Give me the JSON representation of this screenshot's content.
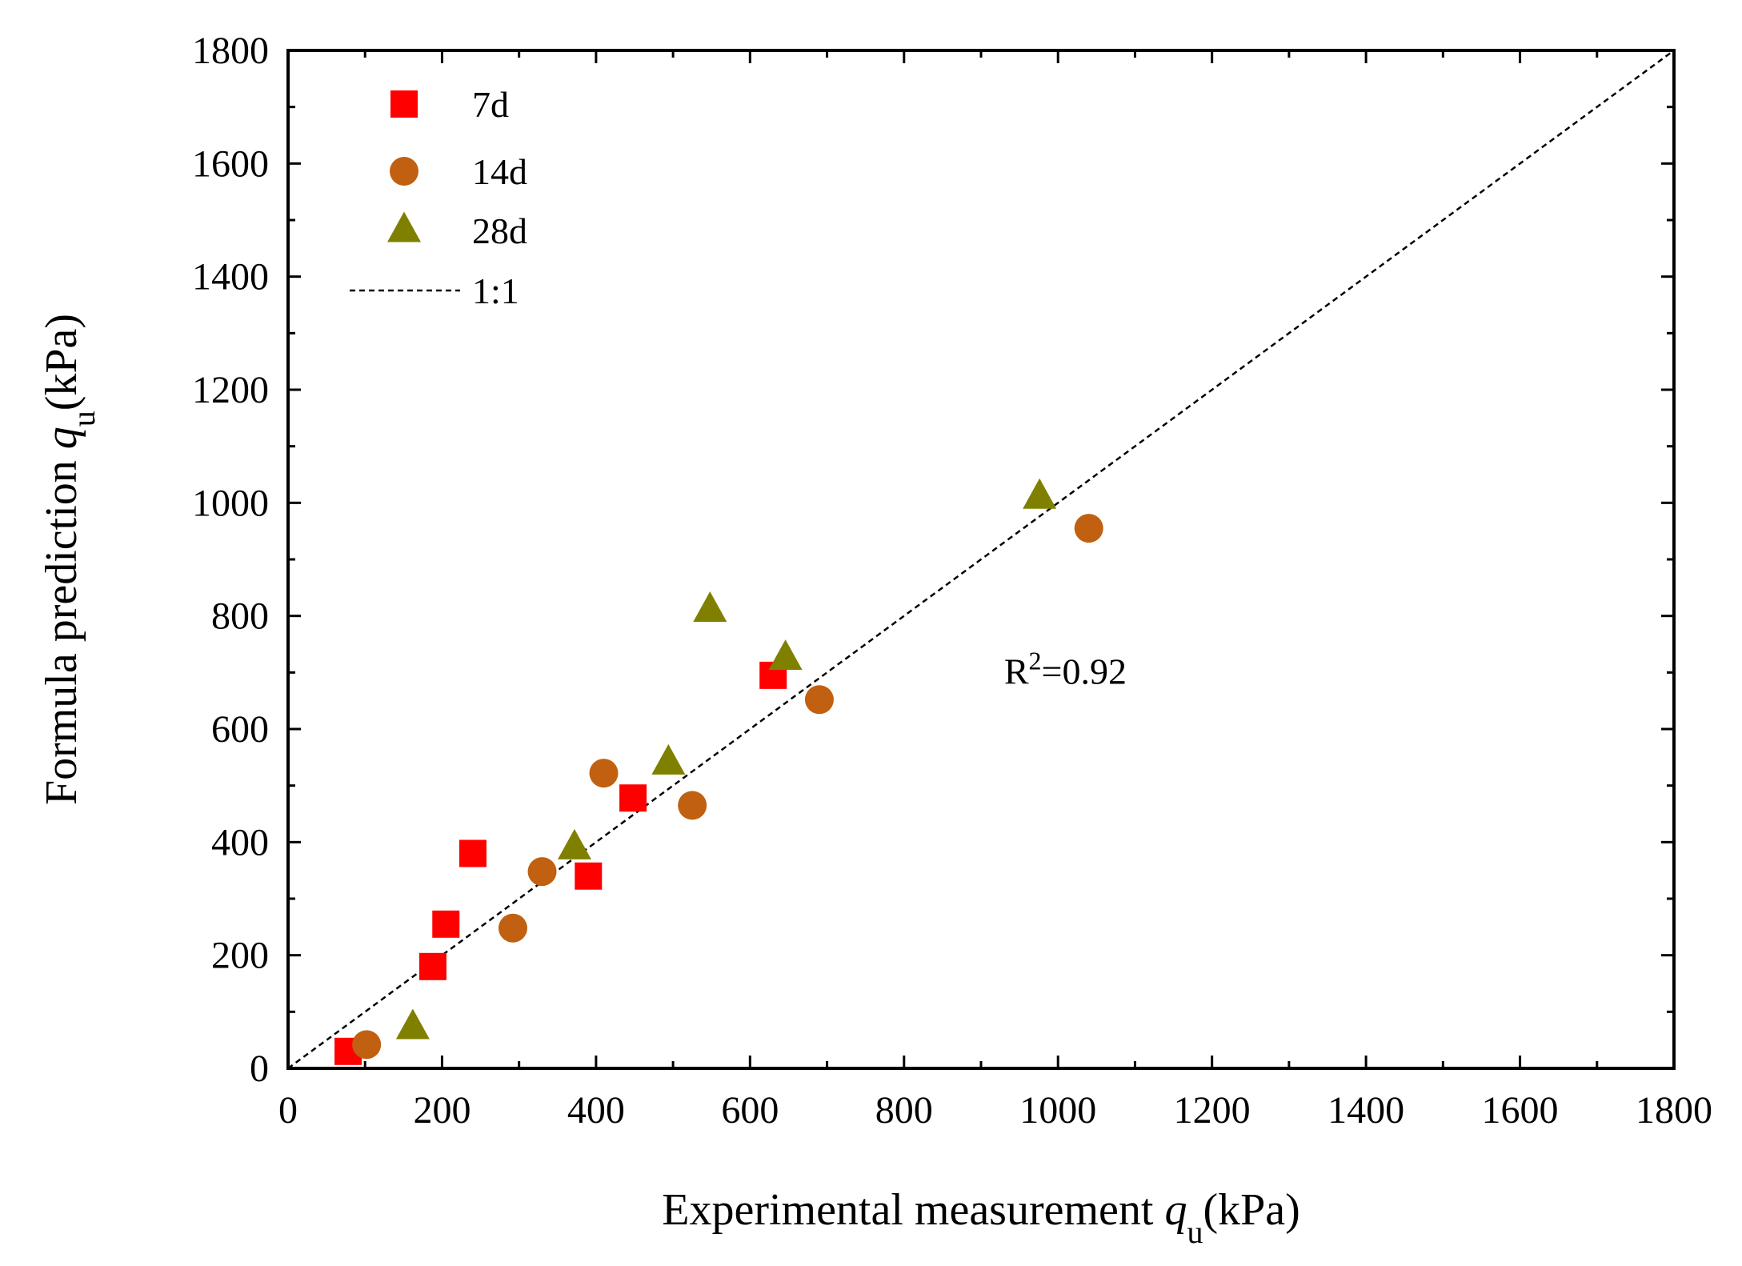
{
  "chart_data": {
    "type": "scatter",
    "xlabel": {
      "main": "Experimental measurement ",
      "var": "q",
      "sub": "u",
      "unit": "(kPa)"
    },
    "ylabel": {
      "main": "Formula prediction ",
      "var": "q",
      "sub": "u",
      "unit": "(kPa)"
    },
    "xlim": [
      0,
      1800
    ],
    "ylim": [
      0,
      1800
    ],
    "major_step": 200,
    "x_ticks": [
      "0",
      "200",
      "400",
      "600",
      "800",
      "1000",
      "1200",
      "1400",
      "1600",
      "1800"
    ],
    "y_ticks": [
      "0",
      "200",
      "400",
      "600",
      "800",
      "1000",
      "1200",
      "1400",
      "1600",
      "1800"
    ],
    "grid": false,
    "legend_position": "top-left",
    "series": [
      {
        "name": "7d",
        "marker": "square",
        "color": "#ff0000",
        "points": [
          [
            78,
            30
          ],
          [
            188,
            180
          ],
          [
            205,
            255
          ],
          [
            240,
            380
          ],
          [
            390,
            340
          ],
          [
            448,
            478
          ],
          [
            630,
            695
          ]
        ]
      },
      {
        "name": "14d",
        "marker": "circle",
        "color": "#c06010",
        "points": [
          [
            102,
            42
          ],
          [
            292,
            248
          ],
          [
            330,
            348
          ],
          [
            410,
            522
          ],
          [
            525,
            465
          ],
          [
            690,
            652
          ],
          [
            1040,
            955
          ]
        ]
      },
      {
        "name": "28d",
        "marker": "triangle",
        "color": "#808000",
        "points": [
          [
            162,
            72
          ],
          [
            372,
            390
          ],
          [
            494,
            540
          ],
          [
            548,
            810
          ],
          [
            646,
            725
          ],
          [
            976,
            1010
          ]
        ]
      }
    ],
    "reference_line": {
      "name": "1:1",
      "from": [
        0,
        0
      ],
      "to": [
        1800,
        1800
      ],
      "style": "dashed",
      "color": "#000000"
    },
    "annotation": {
      "base": "R",
      "sup": "2",
      "rest": "=0.92",
      "x": 930,
      "y": 680
    }
  }
}
